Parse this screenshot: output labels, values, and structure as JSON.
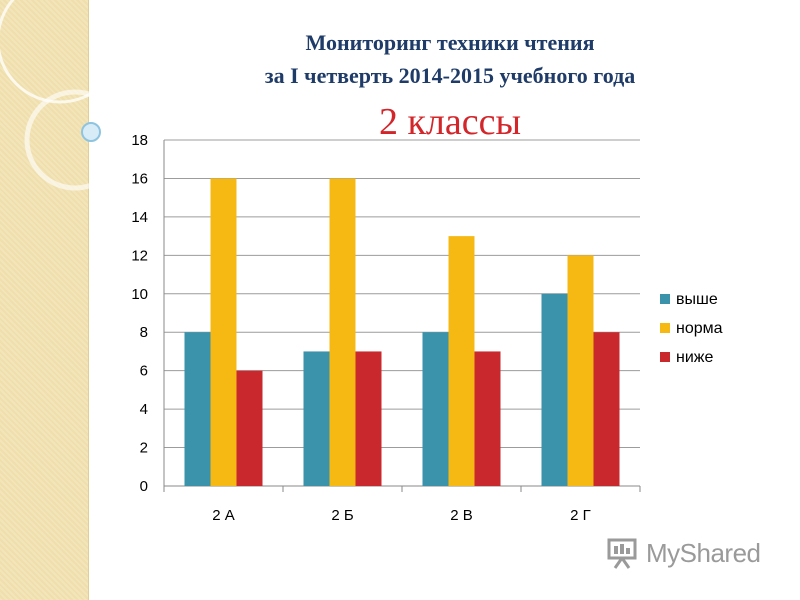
{
  "title_line1": "Мониторинг техники чтения",
  "title_line2": "за I четверть 2014-2015 учебного года",
  "subtitle": "2  классы",
  "logo_text": "MyShared",
  "chart_data": {
    "type": "bar",
    "categories": [
      "2 А",
      "2 Б",
      "2 В",
      "2 Г"
    ],
    "series": [
      {
        "name": "выше",
        "color": "#3a92ab",
        "values": [
          8,
          7,
          8,
          10
        ]
      },
      {
        "name": "норма",
        "color": "#f6b914",
        "values": [
          16,
          16,
          13,
          12
        ]
      },
      {
        "name": "ниже",
        "color": "#c9282d",
        "values": [
          6,
          7,
          7,
          8
        ]
      }
    ],
    "ylim": [
      0,
      18
    ],
    "yticks": [
      "0",
      "2",
      "4",
      "6",
      "8",
      "10",
      "12",
      "14",
      "16",
      "18"
    ],
    "grid": true,
    "legend_position": "right"
  }
}
